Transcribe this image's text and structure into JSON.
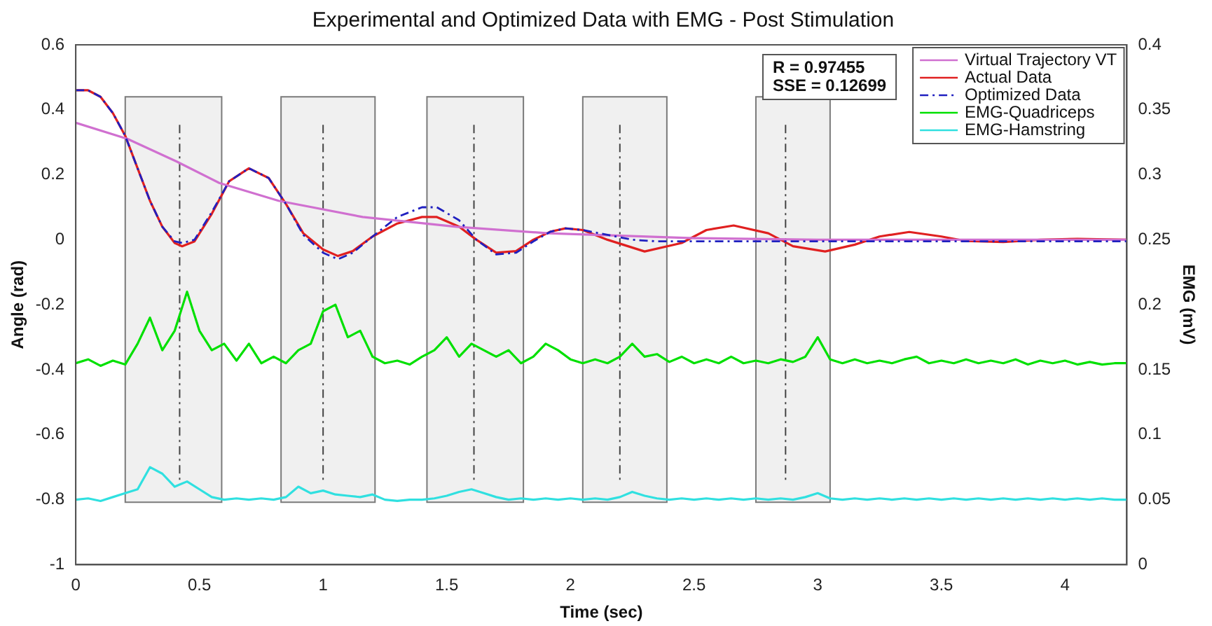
{
  "chart_data": {
    "type": "line",
    "title": "Experimental and Optimized Data with EMG - Post Stimulation",
    "xlabel": "Time (sec)",
    "ylabel": "Angle (rad)",
    "y2label": "EMG (mV)",
    "annotations": [
      "R = 0.97455",
      "SSE = 0.12699"
    ],
    "xlim": [
      0,
      4.25
    ],
    "xticks": [
      0,
      0.5,
      1,
      1.5,
      2,
      2.5,
      3,
      3.5,
      4
    ],
    "ylim": [
      -1,
      0.6
    ],
    "yticks": [
      -1,
      -0.8,
      -0.6,
      -0.4,
      -0.2,
      0,
      0.2,
      0.4,
      0.6
    ],
    "y2lim": [
      0,
      0.4
    ],
    "y2ticks": [
      0,
      0.05,
      0.1,
      0.15,
      0.2,
      0.25,
      0.3,
      0.35,
      0.4
    ],
    "grid": false,
    "legend": "top right",
    "marker": "none",
    "series": [
      {
        "name": "Virtual Trajectory VT",
        "color": "#d070d0",
        "x": [
          0,
          0.21,
          0.41,
          0.58,
          0.82,
          1.16,
          1.54,
          1.91,
          2.5,
          3,
          4.25
        ],
        "values": [
          0.36,
          0.31,
          0.24,
          0.175,
          0.12,
          0.07,
          0.04,
          0.02,
          0.005,
          0,
          0
        ]
      },
      {
        "name": "Actual Data",
        "color": "#e02020",
        "x": [
          0,
          0.05,
          0.1,
          0.15,
          0.2,
          0.25,
          0.3,
          0.35,
          0.4,
          0.43,
          0.48,
          0.55,
          0.62,
          0.7,
          0.78,
          0.85,
          0.92,
          1,
          1.06,
          1.12,
          1.2,
          1.3,
          1.4,
          1.46,
          1.55,
          1.62,
          1.7,
          1.78,
          1.85,
          1.92,
          1.98,
          2.05,
          2.15,
          2.3,
          2.45,
          2.55,
          2.66,
          2.8,
          2.9,
          3.03,
          3.15,
          3.25,
          3.37,
          3.5,
          3.6,
          3.75,
          3.9,
          4.05,
          4.25
        ],
        "values": [
          0.46,
          0.46,
          0.44,
          0.39,
          0.32,
          0.22,
          0.12,
          0.04,
          -0.01,
          -0.02,
          -0.005,
          0.08,
          0.18,
          0.22,
          0.19,
          0.11,
          0.02,
          -0.03,
          -0.05,
          -0.035,
          0.01,
          0.05,
          0.07,
          0.07,
          0.04,
          0,
          -0.04,
          -0.035,
          0,
          0.025,
          0.035,
          0.03,
          0,
          -0.036,
          -0.01,
          0.03,
          0.044,
          0.02,
          -0.02,
          -0.036,
          -0.015,
          0.01,
          0.024,
          0.01,
          -0.004,
          -0.007,
          0,
          0.003,
          0
        ]
      },
      {
        "name": "Optimized Data",
        "color": "#2020c0",
        "line_style": "dashed",
        "x": [
          0,
          0.05,
          0.1,
          0.15,
          0.2,
          0.25,
          0.3,
          0.35,
          0.4,
          0.43,
          0.48,
          0.55,
          0.62,
          0.7,
          0.78,
          0.85,
          0.92,
          1,
          1.06,
          1.12,
          1.2,
          1.3,
          1.4,
          1.46,
          1.55,
          1.62,
          1.7,
          1.78,
          1.85,
          1.92,
          1.98,
          2.05,
          2.15,
          2.25,
          2.35,
          4.25
        ],
        "values": [
          0.46,
          0.46,
          0.44,
          0.39,
          0.32,
          0.22,
          0.12,
          0.04,
          -0.005,
          -0.01,
          0,
          0.085,
          0.18,
          0.22,
          0.19,
          0.11,
          0.015,
          -0.04,
          -0.06,
          -0.04,
          0.01,
          0.07,
          0.1,
          0.1,
          0.06,
          0,
          -0.045,
          -0.04,
          -0.005,
          0.025,
          0.035,
          0.03,
          0.015,
          0,
          -0.005,
          -0.005
        ]
      },
      {
        "name": "EMG-Quadriceps",
        "color": "#00e000",
        "axis": "y2",
        "x": [
          0,
          0.05,
          0.1,
          0.15,
          0.2,
          0.25,
          0.3,
          0.35,
          0.4,
          0.45,
          0.5,
          0.55,
          0.6,
          0.65,
          0.7,
          0.75,
          0.8,
          0.85,
          0.9,
          0.95,
          1,
          1.05,
          1.1,
          1.15,
          1.2,
          1.25,
          1.3,
          1.35,
          1.4,
          1.45,
          1.5,
          1.55,
          1.6,
          1.65,
          1.7,
          1.75,
          1.8,
          1.85,
          1.9,
          1.95,
          2,
          2.05,
          2.1,
          2.15,
          2.2,
          2.25,
          2.3,
          2.35,
          2.4,
          2.45,
          2.5,
          2.55,
          2.6,
          2.65,
          2.7,
          2.75,
          2.8,
          2.85,
          2.9,
          2.95,
          3,
          3.05,
          3.1,
          3.15,
          3.2,
          3.25,
          3.3,
          3.35,
          3.4,
          3.45,
          3.5,
          3.55,
          3.6,
          3.65,
          3.7,
          3.75,
          3.8,
          3.85,
          3.9,
          3.95,
          4,
          4.05,
          4.1,
          4.15,
          4.2,
          4.25
        ],
        "values": [
          0.155,
          0.158,
          0.153,
          0.157,
          0.154,
          0.17,
          0.19,
          0.165,
          0.18,
          0.21,
          0.18,
          0.165,
          0.17,
          0.157,
          0.17,
          0.155,
          0.16,
          0.155,
          0.165,
          0.17,
          0.195,
          0.2,
          0.175,
          0.18,
          0.16,
          0.155,
          0.157,
          0.154,
          0.16,
          0.165,
          0.175,
          0.16,
          0.17,
          0.165,
          0.16,
          0.165,
          0.155,
          0.16,
          0.17,
          0.165,
          0.158,
          0.155,
          0.158,
          0.155,
          0.16,
          0.17,
          0.16,
          0.162,
          0.156,
          0.16,
          0.155,
          0.158,
          0.155,
          0.16,
          0.155,
          0.157,
          0.155,
          0.158,
          0.156,
          0.16,
          0.175,
          0.158,
          0.155,
          0.158,
          0.155,
          0.157,
          0.155,
          0.158,
          0.16,
          0.155,
          0.157,
          0.155,
          0.158,
          0.155,
          0.157,
          0.155,
          0.158,
          0.154,
          0.157,
          0.155,
          0.157,
          0.154,
          0.156,
          0.154,
          0.155,
          0.155
        ]
      },
      {
        "name": "EMG-Hamstring",
        "color": "#30e0e0",
        "axis": "y2",
        "x": [
          0,
          0.05,
          0.1,
          0.15,
          0.2,
          0.25,
          0.3,
          0.35,
          0.4,
          0.45,
          0.5,
          0.55,
          0.6,
          0.65,
          0.7,
          0.75,
          0.8,
          0.85,
          0.9,
          0.95,
          1,
          1.05,
          1.1,
          1.15,
          1.2,
          1.25,
          1.3,
          1.35,
          1.4,
          1.45,
          1.5,
          1.55,
          1.6,
          1.65,
          1.7,
          1.75,
          1.8,
          1.85,
          1.9,
          1.95,
          2,
          2.05,
          2.1,
          2.15,
          2.2,
          2.25,
          2.3,
          2.35,
          2.4,
          2.45,
          2.5,
          2.55,
          2.6,
          2.65,
          2.7,
          2.75,
          2.8,
          2.85,
          2.9,
          2.95,
          3,
          3.05,
          3.1,
          3.15,
          3.2,
          3.25,
          3.3,
          3.35,
          3.4,
          3.45,
          3.5,
          3.55,
          3.6,
          3.65,
          3.7,
          3.75,
          3.8,
          3.85,
          3.9,
          3.95,
          4,
          4.05,
          4.1,
          4.15,
          4.2,
          4.25
        ],
        "values": [
          0.05,
          0.051,
          0.049,
          0.052,
          0.055,
          0.058,
          0.075,
          0.07,
          0.06,
          0.064,
          0.058,
          0.052,
          0.05,
          0.051,
          0.05,
          0.051,
          0.05,
          0.052,
          0.06,
          0.055,
          0.057,
          0.054,
          0.053,
          0.052,
          0.054,
          0.05,
          0.049,
          0.05,
          0.05,
          0.051,
          0.053,
          0.056,
          0.058,
          0.055,
          0.052,
          0.05,
          0.051,
          0.05,
          0.051,
          0.05,
          0.051,
          0.05,
          0.051,
          0.05,
          0.052,
          0.056,
          0.053,
          0.051,
          0.05,
          0.051,
          0.05,
          0.051,
          0.05,
          0.051,
          0.05,
          0.051,
          0.05,
          0.051,
          0.05,
          0.052,
          0.055,
          0.051,
          0.05,
          0.051,
          0.05,
          0.051,
          0.05,
          0.051,
          0.05,
          0.051,
          0.05,
          0.051,
          0.05,
          0.051,
          0.05,
          0.051,
          0.05,
          0.051,
          0.05,
          0.051,
          0.05,
          0.051,
          0.05,
          0.051,
          0.05,
          0.05
        ]
      }
    ],
    "ref_lines": [
      {
        "axis": "x",
        "value": 0.42,
        "line_style": "dashed"
      },
      {
        "axis": "x",
        "value": 1,
        "line_style": "dashed"
      },
      {
        "axis": "x",
        "value": 1.61,
        "line_style": "dashed"
      },
      {
        "axis": "x",
        "value": 2.2,
        "line_style": "dashed"
      },
      {
        "axis": "x",
        "value": 2.87,
        "line_style": "dashed"
      }
    ],
    "bands": [
      {
        "axis": "x",
        "from": 0.2,
        "to": 0.59
      },
      {
        "axis": "x",
        "from": 0.83,
        "to": 1.21
      },
      {
        "axis": "x",
        "from": 1.42,
        "to": 1.81
      },
      {
        "axis": "x",
        "from": 2.05,
        "to": 2.39
      },
      {
        "axis": "x",
        "from": 2.75,
        "to": 3.05
      }
    ]
  }
}
